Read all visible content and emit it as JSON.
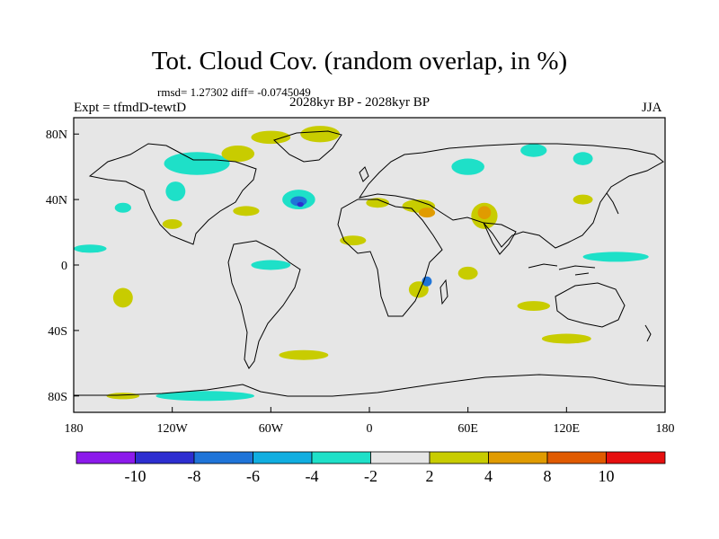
{
  "title": "Tot. Cloud Cov. (random overlap, in %)",
  "stats_text": "rmsd= 1.27302 diff= -0.0745049",
  "experiment_label": "Expt = tfmdD-tewtD",
  "period_label": "2028kyr BP - 2028kyr BP",
  "season_label": "JJA",
  "chart_data": {
    "type": "heatmap",
    "title": "Tot. Cloud Cov. (random overlap, in %)",
    "projection": "cylindrical equidistant",
    "xlim": [
      -180,
      180
    ],
    "ylim": [
      -90,
      90
    ],
    "x_ticks": [
      {
        "value": -180,
        "label": "180"
      },
      {
        "value": -120,
        "label": "120W"
      },
      {
        "value": -60,
        "label": "60W"
      },
      {
        "value": 0,
        "label": "0"
      },
      {
        "value": 60,
        "label": "60E"
      },
      {
        "value": 120,
        "label": "120E"
      },
      {
        "value": 180,
        "label": "180"
      }
    ],
    "y_ticks": [
      {
        "value": 80,
        "label": "80N"
      },
      {
        "value": 40,
        "label": "40N"
      },
      {
        "value": 0,
        "label": "0"
      },
      {
        "value": -40,
        "label": "40S"
      },
      {
        "value": -80,
        "label": "80S"
      }
    ],
    "colorbar": {
      "bins": [
        {
          "color": "#8c1aeb"
        },
        {
          "color": "#2d2ed0"
        },
        {
          "color": "#1f74d8"
        },
        {
          "color": "#11aee0"
        },
        {
          "color": "#1ee0c8"
        },
        {
          "color": "#e6e6e6"
        },
        {
          "color": "#c8cc00"
        },
        {
          "color": "#e09b00"
        },
        {
          "color": "#e05a00"
        },
        {
          "color": "#e60f0f"
        }
      ],
      "labels": [
        "-10",
        "-8",
        "-6",
        "-4",
        "-2",
        "2",
        "4",
        "8",
        "10"
      ]
    },
    "anomaly_regions": [
      {
        "lon": -105,
        "lat": 62,
        "rlon": 20,
        "rlat": 7,
        "bin": 4
      },
      {
        "lon": -118,
        "lat": 45,
        "rlon": 6,
        "rlat": 6,
        "bin": 4
      },
      {
        "lon": -80,
        "lat": 68,
        "rlon": 10,
        "rlat": 5,
        "bin": 6
      },
      {
        "lon": -60,
        "lat": 78,
        "rlon": 12,
        "rlat": 4,
        "bin": 6
      },
      {
        "lon": -30,
        "lat": 80,
        "rlon": 12,
        "rlat": 5,
        "bin": 6
      },
      {
        "lon": -43,
        "lat": 40,
        "rlon": 10,
        "rlat": 6,
        "bin": 4
      },
      {
        "lon": -43,
        "lat": 39,
        "rlon": 5,
        "rlat": 3,
        "bin": 2
      },
      {
        "lon": -42,
        "lat": 37,
        "rlon": 2,
        "rlat": 1.5,
        "bin": 1
      },
      {
        "lon": -150,
        "lat": 35,
        "rlon": 5,
        "rlat": 3,
        "bin": 4
      },
      {
        "lon": -170,
        "lat": 10,
        "rlon": 10,
        "rlat": 2.5,
        "bin": 4
      },
      {
        "lon": -60,
        "lat": 0,
        "rlon": 12,
        "rlat": 3,
        "bin": 4
      },
      {
        "lon": -150,
        "lat": -20,
        "rlon": 6,
        "rlat": 6,
        "bin": 6
      },
      {
        "lon": -120,
        "lat": 25,
        "rlon": 6,
        "rlat": 3,
        "bin": 6
      },
      {
        "lon": -75,
        "lat": 33,
        "rlon": 8,
        "rlat": 3,
        "bin": 6
      },
      {
        "lon": -10,
        "lat": 15,
        "rlon": 8,
        "rlat": 3,
        "bin": 6
      },
      {
        "lon": 5,
        "lat": 38,
        "rlon": 7,
        "rlat": 3,
        "bin": 6
      },
      {
        "lon": 30,
        "lat": 36,
        "rlon": 10,
        "rlat": 4,
        "bin": 6
      },
      {
        "lon": 35,
        "lat": 32,
        "rlon": 5,
        "rlat": 3,
        "bin": 7
      },
      {
        "lon": 70,
        "lat": 30,
        "rlon": 8,
        "rlat": 8,
        "bin": 6
      },
      {
        "lon": 70,
        "lat": 32,
        "rlon": 4,
        "rlat": 4,
        "bin": 7
      },
      {
        "lon": 60,
        "lat": 60,
        "rlon": 10,
        "rlat": 5,
        "bin": 4
      },
      {
        "lon": 100,
        "lat": 70,
        "rlon": 8,
        "rlat": 4,
        "bin": 4
      },
      {
        "lon": 130,
        "lat": 65,
        "rlon": 6,
        "rlat": 4,
        "bin": 4
      },
      {
        "lon": 150,
        "lat": 5,
        "rlon": 20,
        "rlat": 3,
        "bin": 4
      },
      {
        "lon": 130,
        "lat": 40,
        "rlon": 6,
        "rlat": 3,
        "bin": 6
      },
      {
        "lon": 100,
        "lat": -25,
        "rlon": 10,
        "rlat": 3,
        "bin": 6
      },
      {
        "lon": 30,
        "lat": -15,
        "rlon": 6,
        "rlat": 5,
        "bin": 6
      },
      {
        "lon": 35,
        "lat": -10,
        "rlon": 3,
        "rlat": 3,
        "bin": 2
      },
      {
        "lon": 60,
        "lat": -5,
        "rlon": 6,
        "rlat": 4,
        "bin": 6
      },
      {
        "lon": -100,
        "lat": -80,
        "rlon": 30,
        "rlat": 3,
        "bin": 4
      },
      {
        "lon": -150,
        "lat": -80,
        "rlon": 10,
        "rlat": 2,
        "bin": 6
      },
      {
        "lon": -40,
        "lat": -55,
        "rlon": 15,
        "rlat": 3,
        "bin": 6
      },
      {
        "lon": 120,
        "lat": -45,
        "rlon": 15,
        "rlat": 3,
        "bin": 6
      }
    ]
  }
}
